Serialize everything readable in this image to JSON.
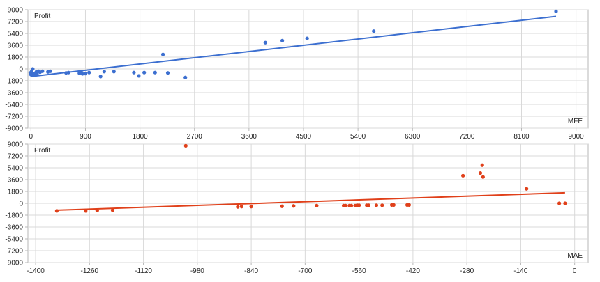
{
  "colors": {
    "blue": "#3c6fd0",
    "red": "#e0401a",
    "grid": "#d9d9d9",
    "frame": "#b7b7b7"
  },
  "chart_data": [
    {
      "type": "scatter",
      "series_color": "blue",
      "ylabel": "Profit",
      "xlabel": "MFE",
      "xlim": [
        -50,
        9200
      ],
      "ylim": [
        -9000,
        9000
      ],
      "xticks": [
        {
          "v": 0,
          "label": "0"
        },
        {
          "v": 900,
          "label": "900"
        },
        {
          "v": 1800,
          "label": "1800"
        },
        {
          "v": 2700,
          "label": "2700"
        },
        {
          "v": 3600,
          "label": "3600"
        },
        {
          "v": 4500,
          "label": "4500"
        },
        {
          "v": 5400,
          "label": "5400"
        },
        {
          "v": 6300,
          "label": "6300"
        },
        {
          "v": 7200,
          "label": "7200"
        },
        {
          "v": 8100,
          "label": "8100"
        },
        {
          "v": 9000,
          "label": "9000"
        }
      ],
      "yticks": [
        {
          "v": 9000,
          "label": "9000"
        },
        {
          "v": 7200,
          "label": "7200"
        },
        {
          "v": 5400,
          "label": "5400"
        },
        {
          "v": 3600,
          "label": "3600"
        },
        {
          "v": 1800,
          "label": "1800"
        },
        {
          "v": 0,
          "label": "0"
        },
        {
          "v": -1800,
          "label": "-1800"
        },
        {
          "v": -3600,
          "label": "-3600"
        },
        {
          "v": -5400,
          "label": "-5400"
        },
        {
          "v": -7200,
          "label": "-7200"
        },
        {
          "v": -9000,
          "label": "-9000"
        }
      ],
      "points": [
        [
          -10,
          -600
        ],
        [
          0,
          -850
        ],
        [
          10,
          -400
        ],
        [
          20,
          -1000
        ],
        [
          30,
          0
        ],
        [
          40,
          -700
        ],
        [
          60,
          -900
        ],
        [
          80,
          -600
        ],
        [
          90,
          -450
        ],
        [
          100,
          -800
        ],
        [
          130,
          -350
        ],
        [
          150,
          -500
        ],
        [
          190,
          -350
        ],
        [
          280,
          -450
        ],
        [
          320,
          -350
        ],
        [
          580,
          -600
        ],
        [
          620,
          -550
        ],
        [
          800,
          -650
        ],
        [
          830,
          -500
        ],
        [
          850,
          -750
        ],
        [
          900,
          -700
        ],
        [
          960,
          -550
        ],
        [
          1150,
          -1150
        ],
        [
          1210,
          -400
        ],
        [
          1370,
          -400
        ],
        [
          1700,
          -550
        ],
        [
          1780,
          -1050
        ],
        [
          1870,
          -550
        ],
        [
          2050,
          -550
        ],
        [
          2180,
          2200
        ],
        [
          2260,
          -600
        ],
        [
          2550,
          -1300
        ],
        [
          3870,
          4000
        ],
        [
          4150,
          4300
        ],
        [
          4560,
          4650
        ],
        [
          5660,
          5750
        ],
        [
          8670,
          8750
        ]
      ],
      "trendline": [
        [
          0,
          -1150
        ],
        [
          8670,
          8000
        ]
      ]
    },
    {
      "type": "scatter",
      "series_color": "red",
      "ylabel": "Profit",
      "xlabel": "MAE",
      "xlim": [
        -1420,
        35
      ],
      "ylim": [
        -9000,
        9000
      ],
      "xticks": [
        {
          "v": -1400,
          "label": "-1400"
        },
        {
          "v": -1260,
          "label": "-1260"
        },
        {
          "v": -1120,
          "label": "-1120"
        },
        {
          "v": -980,
          "label": "-980"
        },
        {
          "v": -840,
          "label": "-840"
        },
        {
          "v": -700,
          "label": "-700"
        },
        {
          "v": -560,
          "label": "-560"
        },
        {
          "v": -420,
          "label": "-420"
        },
        {
          "v": -280,
          "label": "-280"
        },
        {
          "v": -140,
          "label": "-140"
        },
        {
          "v": 0,
          "label": "0"
        }
      ],
      "yticks": [
        {
          "v": 9000,
          "label": "9000"
        },
        {
          "v": 7200,
          "label": "7200"
        },
        {
          "v": 5400,
          "label": "5400"
        },
        {
          "v": 3600,
          "label": "3600"
        },
        {
          "v": 1800,
          "label": "1800"
        },
        {
          "v": 0,
          "label": "0"
        },
        {
          "v": -1800,
          "label": "-1800"
        },
        {
          "v": -3600,
          "label": "-3600"
        },
        {
          "v": -5400,
          "label": "-5400"
        },
        {
          "v": -7200,
          "label": "-7200"
        },
        {
          "v": -9000,
          "label": "-9000"
        }
      ],
      "points": [
        [
          -1345,
          -1150
        ],
        [
          -1270,
          -1150
        ],
        [
          -1240,
          -1100
        ],
        [
          -1200,
          -1050
        ],
        [
          -1010,
          8750
        ],
        [
          -875,
          -550
        ],
        [
          -865,
          -500
        ],
        [
          -840,
          -500
        ],
        [
          -760,
          -450
        ],
        [
          -730,
          -400
        ],
        [
          -670,
          -350
        ],
        [
          -600,
          -350
        ],
        [
          -595,
          -350
        ],
        [
          -585,
          -350
        ],
        [
          -580,
          -350
        ],
        [
          -570,
          -350
        ],
        [
          -565,
          -300
        ],
        [
          -560,
          -300
        ],
        [
          -540,
          -300
        ],
        [
          -535,
          -300
        ],
        [
          -515,
          -300
        ],
        [
          -500,
          -300
        ],
        [
          -475,
          -250
        ],
        [
          -470,
          -250
        ],
        [
          -435,
          -250
        ],
        [
          -430,
          -250
        ],
        [
          -290,
          4200
        ],
        [
          -245,
          4600
        ],
        [
          -240,
          5800
        ],
        [
          -238,
          4000
        ],
        [
          -125,
          2200
        ],
        [
          -40,
          0
        ],
        [
          -25,
          0
        ]
      ],
      "trendline": [
        [
          -1345,
          -1050
        ],
        [
          -25,
          1600
        ]
      ]
    }
  ]
}
